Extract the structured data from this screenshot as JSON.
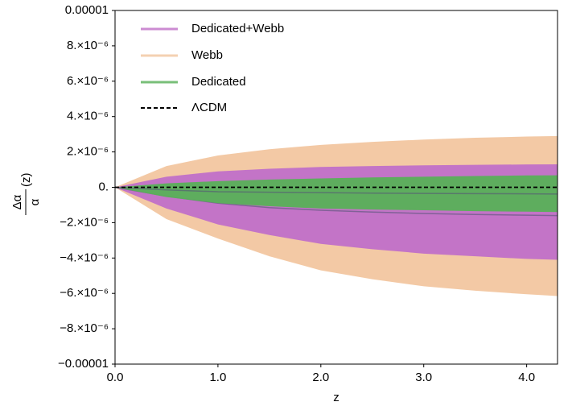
{
  "chart_data": {
    "type": "band",
    "xlabel": "z",
    "ylabel": {
      "numerator": "Δα",
      "denominator": "α",
      "suffix": "(z)"
    },
    "x": [
      0,
      0.5,
      1,
      1.5,
      2,
      2.5,
      3,
      3.5,
      4,
      4.3
    ],
    "xlim": [
      0,
      4.3
    ],
    "ylim": [
      -1e-05,
      1e-05
    ],
    "xticks": [
      {
        "value": 0,
        "label": "0.0"
      },
      {
        "value": 1,
        "label": "1.0"
      },
      {
        "value": 2,
        "label": "2.0"
      },
      {
        "value": 3,
        "label": "3.0"
      },
      {
        "value": 4,
        "label": "4.0"
      }
    ],
    "yticks": [
      {
        "value": 1e-05,
        "label": "0.00001"
      },
      {
        "value": 8e-06,
        "label": "8.×10⁻⁶"
      },
      {
        "value": 6e-06,
        "label": "6.×10⁻⁶"
      },
      {
        "value": 4e-06,
        "label": "4.×10⁻⁶"
      },
      {
        "value": 2e-06,
        "label": "2.×10⁻⁶"
      },
      {
        "value": 0,
        "label": "0."
      },
      {
        "value": -2e-06,
        "label": "−2.×10⁻⁶"
      },
      {
        "value": -4e-06,
        "label": "−4.×10⁻⁶"
      },
      {
        "value": -6e-06,
        "label": "−6.×10⁻⁶"
      },
      {
        "value": -8e-06,
        "label": "−8.×10⁻⁶"
      },
      {
        "value": -1e-05,
        "label": "−0.00001"
      }
    ],
    "legend": "upper left",
    "series": [
      {
        "name": "Dedicated+Webb",
        "color": "#c070c8",
        "upper": [
          0,
          6e-07,
          9e-07,
          1.05e-06,
          1.15e-06,
          1.2e-06,
          1.24e-06,
          1.27e-06,
          1.29e-06,
          1.3e-06
        ],
        "lower": [
          0,
          -1.2e-06,
          -2.1e-06,
          -2.7e-06,
          -3.2e-06,
          -3.5e-06,
          -3.75e-06,
          -3.9e-06,
          -4.05e-06,
          -4.1e-06
        ],
        "center": [
          0,
          -5e-07,
          -9e-07,
          -1.15e-06,
          -1.3e-06,
          -1.4e-06,
          -1.48e-06,
          -1.54e-06,
          -1.58e-06,
          -1.6e-06
        ]
      },
      {
        "name": "Webb",
        "color": "#f2c6a0",
        "upper": [
          0,
          1.2e-06,
          1.8e-06,
          2.15e-06,
          2.4e-06,
          2.57e-06,
          2.7e-06,
          2.8e-06,
          2.87e-06,
          2.9e-06
        ],
        "lower": [
          0,
          -1.8e-06,
          -2.9e-06,
          -3.9e-06,
          -4.7e-06,
          -5.2e-06,
          -5.6e-06,
          -5.85e-06,
          -6.05e-06,
          -6.15e-06
        ]
      },
      {
        "name": "Dedicated",
        "color": "#58b058",
        "upper": [
          0,
          2.2e-07,
          3.5e-07,
          4.4e-07,
          5e-07,
          5.6e-07,
          6e-07,
          6.4e-07,
          6.7e-07,
          6.8e-07
        ],
        "lower": [
          0,
          -5.5e-07,
          -9e-07,
          -1.07e-06,
          -1.2e-06,
          -1.26e-06,
          -1.3e-06,
          -1.35e-06,
          -1.38e-06,
          -1.4e-06
        ],
        "center": [
          0,
          -1.5e-07,
          -2.5e-07,
          -2.8e-07,
          -3e-07,
          -3.3e-07,
          -3.5e-07,
          -3.6e-07,
          -3.7e-07,
          -3.8e-07
        ]
      },
      {
        "name": "ΛCDM",
        "color": "#000000",
        "dashed": true,
        "values": [
          0,
          0,
          0,
          0,
          0,
          0,
          0,
          0,
          0,
          0
        ]
      }
    ]
  }
}
